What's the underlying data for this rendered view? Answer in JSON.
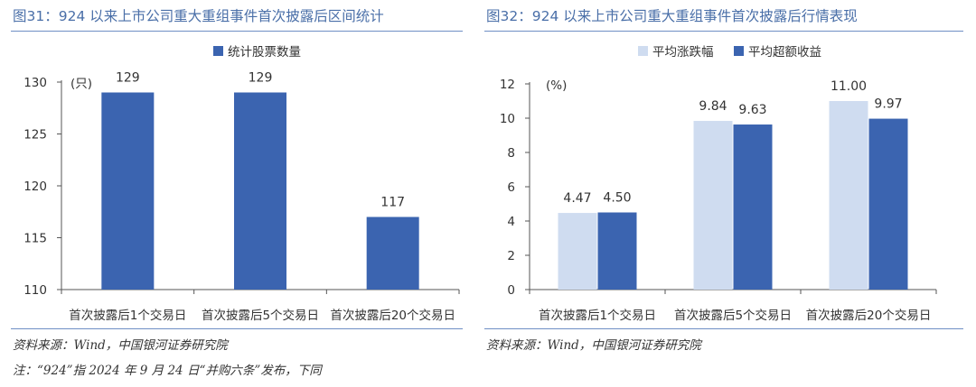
{
  "colors": {
    "title_blue": "#4a6fa8",
    "bar_dark": "#3b64b0",
    "bar_light": "#cfdcf0",
    "axis": "#555555"
  },
  "left_panel": {
    "title": "图31：924 以来上市公司重大重组事件首次披露后区间统计",
    "source": "资料来源：Wind，中国银河证券研究院"
  },
  "right_panel": {
    "title": "图32：924 以来上市公司重大重组事件首次披露后行情表现",
    "source": "资料来源：Wind，中国银河证券研究院"
  },
  "note": "注：“924”指 2024 年 9 月 24 日“并购六条”发布，下同",
  "chart_data": [
    {
      "type": "bar",
      "unit_label": "(只)",
      "categories": [
        "首次披露后1个交易日",
        "首次披露后5个交易日",
        "首次披露后20个交易日"
      ],
      "series": [
        {
          "name": "统计股票数量",
          "values": [
            129,
            129,
            117
          ],
          "labels": [
            "129",
            "129",
            "117"
          ],
          "color": "#3b64b0"
        }
      ],
      "ylim": [
        110,
        130
      ],
      "yticks": [
        110,
        115,
        120,
        125,
        130
      ],
      "legend": "top-center",
      "grid": false
    },
    {
      "type": "bar",
      "unit_label": "(%)",
      "categories": [
        "首次披露后1个交易日",
        "首次披露后5个交易日",
        "首次披露后20个交易日"
      ],
      "series": [
        {
          "name": "平均涨跌幅",
          "values": [
            4.47,
            9.84,
            11.0
          ],
          "labels": [
            "4.47",
            "9.84",
            "11.00"
          ],
          "color": "#cfdcf0"
        },
        {
          "name": "平均超额收益",
          "values": [
            4.5,
            9.63,
            9.97
          ],
          "labels": [
            "4.50",
            "9.63",
            "9.97"
          ],
          "color": "#3b64b0"
        }
      ],
      "ylim": [
        0,
        12
      ],
      "yticks": [
        0,
        2,
        4,
        6,
        8,
        10,
        12
      ],
      "legend": "top-center",
      "grid": false
    }
  ]
}
